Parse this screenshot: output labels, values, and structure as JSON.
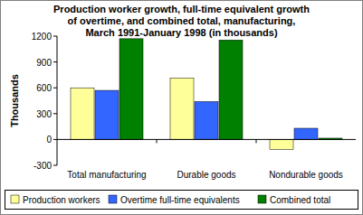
{
  "chart_data": {
    "type": "bar",
    "title": [
      "Production worker growth, full-time equivalent growth",
      "of overtime, and combined total, manufacturing,",
      "March 1991-January 1998 (in thousands)"
    ],
    "y_label": "Thousands",
    "categories": [
      "Total manufacturing",
      "Durable goods",
      "Nondurable goods"
    ],
    "series": [
      {
        "name": "Production workers",
        "color": "#ffff99",
        "values": [
          600,
          715,
          -115
        ]
      },
      {
        "name": "Overtime full-time equivalents",
        "color": "#3366ff",
        "values": [
          570,
          440,
          130
        ]
      },
      {
        "name": "Combined total",
        "color": "#008000",
        "values": [
          1170,
          1155,
          15
        ]
      }
    ],
    "ylim": [
      -300,
      1200
    ],
    "yticks": [
      -300,
      0,
      300,
      600,
      900,
      1200
    ],
    "grid": false,
    "legend": "bottom"
  }
}
